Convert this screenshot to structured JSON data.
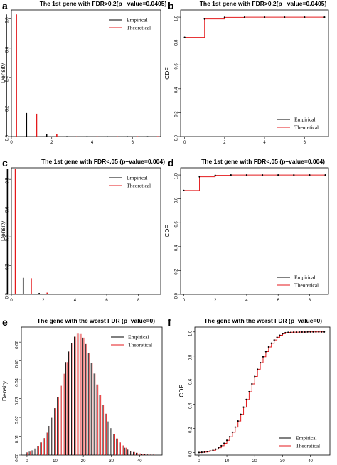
{
  "chart_data": [
    {
      "letter": "a",
      "type": "bar",
      "title": "The 1st gene with FDR>0.2(p –value=0.0405)",
      "ylabel": "Density",
      "xlim": [
        0,
        7.4
      ],
      "ylim": [
        0,
        0.86
      ],
      "xticks": [
        "0",
        "2",
        "4",
        "6"
      ],
      "xtick_values": [
        0,
        2,
        4,
        6
      ],
      "yticks": [
        "0.0",
        "0.2",
        "0.4",
        "0.6",
        "0.8"
      ],
      "ytick_values": [
        0,
        0.2,
        0.4,
        0.6,
        0.8
      ],
      "series": [
        {
          "name": "Empirical",
          "color": "#000000",
          "x": [
            0,
            1,
            2,
            3,
            4,
            5,
            6,
            7
          ],
          "values": [
            0.83,
            0.16,
            0.015,
            0.003,
            0.001,
            0.0005,
            0.0003,
            0.0002
          ]
        },
        {
          "name": "Theoretical",
          "color": "#e41a1c",
          "x": [
            0,
            1,
            2,
            3,
            4,
            5,
            6,
            7
          ],
          "values": [
            0.83,
            0.155,
            0.015,
            0.002,
            0.001,
            0.0005,
            0.0003,
            0.0002
          ]
        }
      ],
      "legend": [
        "Empirical",
        "Theoretical"
      ],
      "legend_position": "top-right"
    },
    {
      "letter": "b",
      "type": "line",
      "title": "The 1st gene with FDR>0.2(p –value=0.0405)",
      "ylabel": "CDF",
      "xlim": [
        -0.2,
        7.2
      ],
      "ylim": [
        0,
        1.06
      ],
      "xticks": [
        "0",
        "2",
        "4",
        "6"
      ],
      "xtick_values": [
        0,
        2,
        4,
        6
      ],
      "yticks": [
        "0.0",
        "0.2",
        "0.4",
        "0.6",
        "0.8",
        "1.0"
      ],
      "ytick_values": [
        0,
        0.2,
        0.4,
        0.6,
        0.8,
        1.0
      ],
      "x": [
        0,
        1,
        2,
        3,
        4,
        5,
        6,
        7
      ],
      "series": [
        {
          "name": "Empirical",
          "color": "#000000",
          "values": [
            0.83,
            0.985,
            0.998,
            1.0,
            1.0,
            1.0,
            1.0,
            1.0
          ]
        },
        {
          "name": "Theoretical",
          "color": "#e41a1c",
          "values": [
            0.83,
            0.985,
            0.998,
            1.0,
            1.0,
            1.0,
            1.0,
            1.0
          ]
        }
      ],
      "legend": [
        "Empirical",
        "Theoretical"
      ],
      "legend_position": "bottom-right"
    },
    {
      "letter": "c",
      "type": "bar",
      "title": "The 1st gene with FDR<.05 (p–value=0.004)",
      "ylabel": "Density",
      "xlim": [
        0,
        9.4
      ],
      "ylim": [
        0,
        0.88
      ],
      "xticks": [
        "0",
        "2",
        "4",
        "6",
        "8"
      ],
      "xtick_values": [
        0,
        2,
        4,
        6,
        8
      ],
      "yticks": [
        "0.0",
        "0.2",
        "0.4",
        "0.6",
        "0.8"
      ],
      "ytick_values": [
        0,
        0.2,
        0.4,
        0.6,
        0.8
      ],
      "series": [
        {
          "name": "Empirical",
          "color": "#000000",
          "x": [
            0,
            1,
            2,
            3,
            4,
            5,
            6,
            7,
            8,
            9
          ],
          "values": [
            0.87,
            0.115,
            0.01,
            0.002,
            0.001,
            0.0005,
            0.0003,
            0.0002,
            0.0002,
            0.0001
          ]
        },
        {
          "name": "Theoretical",
          "color": "#e41a1c",
          "x": [
            0,
            1,
            2,
            3,
            4,
            5,
            6,
            7,
            8,
            9
          ],
          "values": [
            0.87,
            0.112,
            0.012,
            0.002,
            0.001,
            0.0005,
            0.0003,
            0.0002,
            0.0002,
            0.0001
          ]
        }
      ],
      "legend": [
        "Empirical",
        "Theoretical"
      ],
      "legend_position": "top-right"
    },
    {
      "letter": "d",
      "type": "line",
      "title": "The 1st gene with FDR<.05 (p–value=0.004)",
      "ylabel": "CDF",
      "xlim": [
        -0.2,
        9.2
      ],
      "ylim": [
        0,
        1.06
      ],
      "xticks": [
        "0",
        "2",
        "4",
        "6",
        "8"
      ],
      "xtick_values": [
        0,
        2,
        4,
        6,
        8
      ],
      "yticks": [
        "0.0",
        "0.2",
        "0.4",
        "0.6",
        "0.8",
        "1.0"
      ],
      "ytick_values": [
        0,
        0.2,
        0.4,
        0.6,
        0.8,
        1.0
      ],
      "x": [
        0,
        1,
        2,
        3,
        4,
        5,
        6,
        7,
        8,
        9
      ],
      "series": [
        {
          "name": "Empirical",
          "color": "#000000",
          "values": [
            0.87,
            0.985,
            0.997,
            1.0,
            1.0,
            1.0,
            1.0,
            1.0,
            1.0,
            1.0
          ]
        },
        {
          "name": "Theoretical",
          "color": "#e41a1c",
          "values": [
            0.87,
            0.985,
            0.997,
            1.0,
            1.0,
            1.0,
            1.0,
            1.0,
            1.0,
            1.0
          ]
        }
      ],
      "legend": [
        "Empirical",
        "Theoretical"
      ],
      "legend_position": "bottom-right"
    },
    {
      "letter": "e",
      "type": "bar",
      "title": "The gene with the worst FDR (p–value=0)",
      "ylabel": "Density",
      "xlim": [
        -2,
        48
      ],
      "ylim": [
        0,
        0.068
      ],
      "xticks": [
        "0",
        "10",
        "20",
        "30",
        "40"
      ],
      "xtick_values": [
        0,
        10,
        20,
        30,
        40
      ],
      "yticks": [
        "0.00",
        "0.01",
        "0.02",
        "0.03",
        "0.04",
        "0.05",
        "0.06"
      ],
      "ytick_values": [
        0,
        0.01,
        0.02,
        0.03,
        0.04,
        0.05,
        0.06
      ],
      "series": [
        {
          "name": "Empirical",
          "color": "#000000",
          "x": [
            0,
            1,
            2,
            3,
            4,
            5,
            6,
            7,
            8,
            9,
            10,
            11,
            12,
            13,
            14,
            15,
            16,
            17,
            18,
            19,
            20,
            21,
            22,
            23,
            24,
            25,
            26,
            27,
            28,
            29,
            30,
            31,
            32,
            33,
            34,
            35,
            36,
            37,
            38,
            39,
            40,
            41,
            42,
            43,
            44,
            45
          ],
          "values": [
            0.0014,
            0.0018,
            0.0025,
            0.0035,
            0.0049,
            0.0067,
            0.009,
            0.0119,
            0.0155,
            0.0198,
            0.0249,
            0.0306,
            0.0368,
            0.0432,
            0.0494,
            0.055,
            0.0597,
            0.0629,
            0.0645,
            0.0643,
            0.0624,
            0.059,
            0.0544,
            0.049,
            0.0433,
            0.0375,
            0.0319,
            0.0267,
            0.022,
            0.0179,
            0.0143,
            0.0113,
            0.0088,
            0.0067,
            0.0051,
            0.0039,
            0.0029,
            0.0021,
            0.0016,
            0.0012,
            0.0009,
            0.0006,
            0.0005,
            0.0003,
            0.0002,
            0.0002
          ]
        },
        {
          "name": "Theoretical",
          "color": "#e41a1c",
          "x": [
            0,
            1,
            2,
            3,
            4,
            5,
            6,
            7,
            8,
            9,
            10,
            11,
            12,
            13,
            14,
            15,
            16,
            17,
            18,
            19,
            20,
            21,
            22,
            23,
            24,
            25,
            26,
            27,
            28,
            29,
            30,
            31,
            32,
            33,
            34,
            35,
            36,
            37,
            38,
            39,
            40,
            41,
            42,
            43,
            44,
            45
          ],
          "values": [
            0.0014,
            0.0018,
            0.0025,
            0.0035,
            0.0049,
            0.0067,
            0.009,
            0.0119,
            0.0155,
            0.0198,
            0.0249,
            0.0306,
            0.0368,
            0.0432,
            0.0494,
            0.055,
            0.0597,
            0.0629,
            0.0645,
            0.0643,
            0.0624,
            0.059,
            0.0544,
            0.049,
            0.0433,
            0.0375,
            0.0319,
            0.0267,
            0.022,
            0.0179,
            0.0143,
            0.0113,
            0.0088,
            0.0067,
            0.0051,
            0.0039,
            0.0029,
            0.0021,
            0.0016,
            0.0012,
            0.0009,
            0.0006,
            0.0005,
            0.0003,
            0.0002,
            0.0002
          ]
        }
      ],
      "legend": [
        "Empirical",
        "Theoretical"
      ],
      "legend_position": "top-right"
    },
    {
      "letter": "f",
      "type": "line",
      "title": "The gene with the worst FDR (p–value=0)",
      "ylabel": "CDF",
      "xlim": [
        -1.5,
        47
      ],
      "ylim": [
        -0.02,
        1.04
      ],
      "xticks": [
        "0",
        "10",
        "20",
        "30",
        "40"
      ],
      "xtick_values": [
        0,
        10,
        20,
        30,
        40
      ],
      "yticks": [
        "0.0",
        "0.2",
        "0.4",
        "0.6",
        "0.8",
        "1.0"
      ],
      "ytick_values": [
        0,
        0.2,
        0.4,
        0.6,
        0.8,
        1.0
      ],
      "x": [
        0,
        1,
        2,
        3,
        4,
        5,
        6,
        7,
        8,
        9,
        10,
        11,
        12,
        13,
        14,
        15,
        16,
        17,
        18,
        19,
        20,
        21,
        22,
        23,
        24,
        25,
        26,
        27,
        28,
        29,
        30,
        31,
        32,
        33,
        34,
        35,
        36,
        37,
        38,
        39,
        40,
        41,
        42,
        43,
        44,
        45
      ],
      "series": [
        {
          "name": "Empirical",
          "color": "#000000",
          "values": [
            0.001,
            0.003,
            0.005,
            0.009,
            0.014,
            0.02,
            0.029,
            0.041,
            0.057,
            0.077,
            0.102,
            0.132,
            0.169,
            0.212,
            0.262,
            0.317,
            0.377,
            0.44,
            0.504,
            0.569,
            0.631,
            0.69,
            0.745,
            0.794,
            0.837,
            0.875,
            0.906,
            0.933,
            0.955,
            0.972,
            0.985,
            0.993,
            0.996,
            0.997,
            0.998,
            0.998,
            0.999,
            0.999,
            0.999,
            1.0,
            1.0,
            1.0,
            1.0,
            1.0,
            1.0,
            1.0
          ]
        },
        {
          "name": "Theoretical",
          "color": "#e41a1c",
          "values": [
            0.001,
            0.003,
            0.005,
            0.009,
            0.014,
            0.02,
            0.029,
            0.041,
            0.057,
            0.077,
            0.102,
            0.132,
            0.169,
            0.212,
            0.262,
            0.317,
            0.377,
            0.44,
            0.504,
            0.569,
            0.631,
            0.69,
            0.745,
            0.794,
            0.837,
            0.875,
            0.906,
            0.933,
            0.955,
            0.972,
            0.985,
            0.993,
            0.996,
            0.997,
            0.998,
            0.998,
            0.999,
            0.999,
            0.999,
            1.0,
            1.0,
            1.0,
            1.0,
            1.0,
            1.0,
            1.0
          ]
        }
      ],
      "legend": [
        "Empirical",
        "Theoretical"
      ],
      "legend_position": "bottom-right"
    }
  ]
}
